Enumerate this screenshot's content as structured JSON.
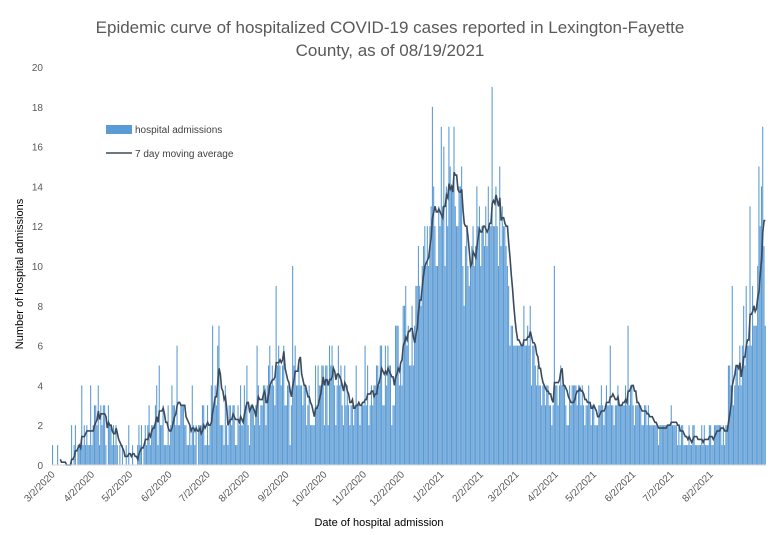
{
  "chart_data": {
    "type": "bar",
    "title_line1": "Epidemic curve of hospitalized COVID-19 cases reported in Lexington-Fayette",
    "title_line2": "County, as of 08/19/2021",
    "xlabel": "Date of hospital admission",
    "ylabel": "Number of hospital admissions",
    "ylim": [
      0,
      20
    ],
    "yticks": [
      0,
      2,
      4,
      6,
      8,
      10,
      12,
      14,
      16,
      18,
      20
    ],
    "start_date": "3/2/2020",
    "end_date": "8/19/2021",
    "xticks": [
      "3/2/2020",
      "4/2/2020",
      "5/2/2020",
      "6/2/2020",
      "7/2/2020",
      "8/2/2020",
      "9/2/2020",
      "10/2/2020",
      "11/2/2020",
      "12/2/2020",
      "1/2/2021",
      "2/2/2021",
      "3/2/2021",
      "4/2/2021",
      "5/2/2021",
      "6/2/2021",
      "7/2/2021",
      "8/2/2021"
    ],
    "grid": false,
    "legend_position": "top-left",
    "series": [
      {
        "name": "hospital admissions",
        "type": "bar",
        "color": "#5b9bd5",
        "values": [
          1,
          0,
          0,
          0,
          1,
          0,
          0,
          0,
          0,
          0,
          0,
          0,
          0,
          0,
          0,
          2,
          0,
          1,
          2,
          0,
          1,
          1,
          1,
          4,
          1,
          2,
          1,
          2,
          1,
          1,
          4,
          1,
          2,
          3,
          3,
          2,
          4,
          1,
          3,
          2,
          3,
          3,
          1,
          0,
          3,
          2,
          2,
          1,
          2,
          1,
          2,
          1,
          0,
          1,
          0,
          1,
          0,
          0,
          1,
          0,
          2,
          0,
          0,
          1,
          0,
          0,
          0,
          1,
          2,
          1,
          2,
          0,
          1,
          2,
          1,
          2,
          3,
          1,
          2,
          2,
          2,
          3,
          4,
          1,
          5,
          2,
          2,
          3,
          1,
          1,
          1,
          3,
          1,
          2,
          4,
          3,
          3,
          2,
          6,
          2,
          2,
          3,
          3,
          3,
          2,
          2,
          1,
          1,
          2,
          1,
          4,
          2,
          1,
          2,
          0,
          2,
          2,
          2,
          3,
          3,
          1,
          1,
          3,
          1,
          2,
          4,
          7,
          3,
          4,
          3,
          6,
          7,
          2,
          2,
          2,
          1,
          4,
          2,
          1,
          3,
          3,
          2,
          3,
          3,
          1,
          1,
          3,
          2,
          4,
          2,
          2,
          4,
          3,
          5,
          2,
          1,
          3,
          3,
          3,
          2,
          3,
          6,
          4,
          2,
          3,
          3,
          4,
          4,
          2,
          4,
          5,
          6,
          4,
          5,
          4,
          3,
          9,
          5,
          6,
          5,
          4,
          5,
          6,
          3,
          3,
          4,
          4,
          1,
          3,
          10,
          5,
          6,
          4,
          4,
          5,
          4,
          4,
          3,
          4,
          4,
          2,
          3,
          4,
          2,
          2,
          2,
          2,
          5,
          3,
          5,
          4,
          4,
          5,
          5,
          2,
          5,
          5,
          2,
          6,
          5,
          6,
          5,
          4,
          2,
          4,
          6,
          4,
          5,
          3,
          2,
          5,
          3,
          4,
          3,
          2,
          3,
          3,
          2,
          3,
          5,
          3,
          3,
          2,
          3,
          3,
          3,
          6,
          3,
          5,
          2,
          3,
          4,
          3,
          4,
          4,
          5,
          5,
          4,
          6,
          6,
          3,
          3,
          6,
          4,
          6,
          5,
          5,
          2,
          3,
          3,
          7,
          7,
          7,
          4,
          5,
          4,
          8,
          8,
          9,
          6,
          7,
          5,
          5,
          8,
          5,
          7,
          9,
          9,
          11,
          9,
          8,
          10,
          11,
          12,
          10,
          12,
          10,
          12,
          13,
          18,
          14,
          12,
          10,
          10,
          13,
          12,
          17,
          13,
          16,
          10,
          14,
          12,
          17,
          15,
          14,
          14,
          17,
          13,
          12,
          12,
          14,
          14,
          15,
          10,
          8,
          11,
          12,
          10,
          9,
          10,
          11,
          12,
          10,
          11,
          14,
          12,
          13,
          10,
          12,
          12,
          11,
          13,
          11,
          14,
          12,
          12,
          19,
          12,
          12,
          14,
          12,
          10,
          15,
          11,
          13,
          12,
          12,
          11,
          10,
          9,
          6,
          7,
          7,
          6,
          6,
          6,
          6,
          6,
          6,
          6,
          6,
          8,
          6,
          6,
          7,
          6,
          8,
          4,
          6,
          6,
          5,
          4,
          5,
          4,
          4,
          3,
          4,
          4,
          3,
          4,
          4,
          3,
          3,
          2,
          3,
          10,
          4,
          4,
          3,
          4,
          5,
          4,
          4,
          4,
          3,
          2,
          2,
          4,
          3,
          4,
          4,
          4,
          4,
          3,
          4,
          4,
          3,
          4,
          3,
          2,
          3,
          3,
          4,
          3,
          2,
          3,
          3,
          2,
          2,
          2,
          3,
          3,
          4,
          3,
          2,
          3,
          4,
          3,
          3,
          6,
          3,
          3,
          2,
          3,
          3,
          4,
          3,
          3,
          3,
          3,
          3,
          4,
          3,
          7,
          3,
          4,
          4,
          3,
          2,
          3,
          3,
          3,
          3,
          3,
          2,
          2,
          3,
          3,
          2,
          3,
          2,
          2,
          2,
          2,
          2,
          2,
          2,
          1,
          2,
          2,
          2,
          2,
          2,
          2,
          2,
          2,
          2,
          3,
          2,
          2,
          2,
          2,
          1,
          2,
          1,
          2,
          2,
          1,
          1,
          1,
          1,
          2,
          1,
          1,
          2,
          2,
          1,
          1,
          1,
          1,
          1,
          2,
          1,
          2,
          1,
          1,
          1,
          2,
          2,
          1,
          1,
          2,
          2,
          2,
          2,
          2,
          2,
          1,
          2,
          1,
          2,
          2,
          5,
          5,
          4,
          9,
          3,
          4,
          5,
          5,
          4,
          6,
          4,
          6,
          8,
          5,
          9,
          6,
          6,
          13,
          6,
          9,
          7,
          7,
          7,
          10,
          15,
          12,
          14,
          17,
          11,
          7
        ]
      },
      {
        "name": "7 day moving average",
        "type": "line",
        "color": "#3b4a5c"
      }
    ]
  }
}
